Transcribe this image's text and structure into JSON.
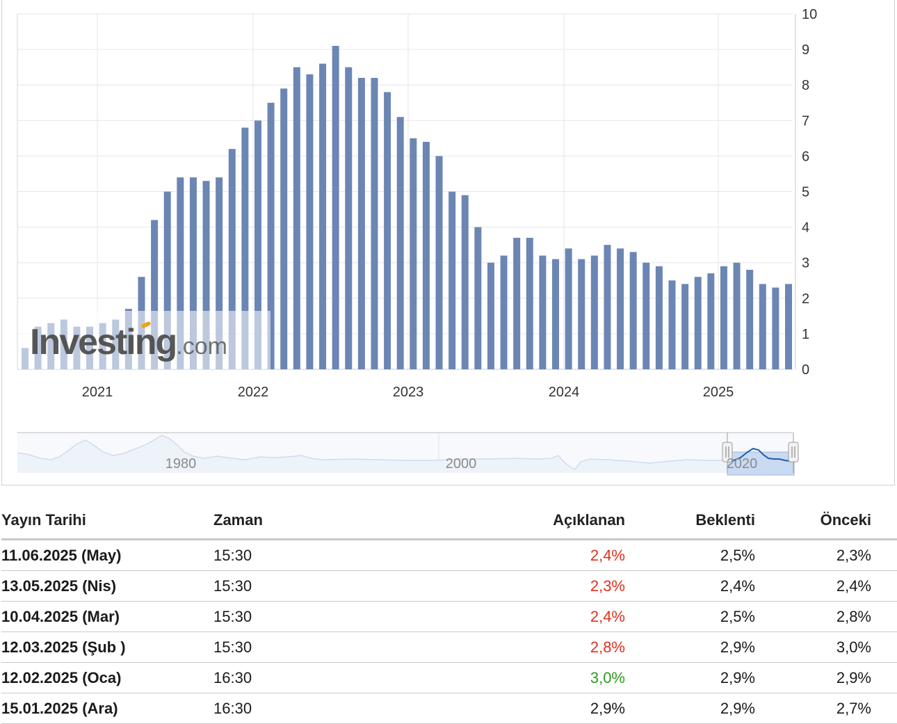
{
  "colors": {
    "bar": "#6b86b3",
    "grid": "#e6e6e6",
    "negative": "#e0301e",
    "positive": "#2e9b1f",
    "navigator_line": "#1f5fa8",
    "navigator_fill": "#c9daf2"
  },
  "watermark": {
    "brand": "Investing",
    "suffix": ".com"
  },
  "chart_data": {
    "type": "bar",
    "y_axis": {
      "min": 0,
      "max": 10,
      "ticks": [
        0,
        1,
        2,
        3,
        4,
        5,
        6,
        7,
        8,
        9,
        10
      ],
      "position": "right"
    },
    "x_axis": {
      "ticks": [
        "2021",
        "2022",
        "2023",
        "2024",
        "2025"
      ]
    },
    "grid": true,
    "values": [
      0.6,
      1.2,
      1.3,
      1.4,
      1.2,
      1.2,
      1.3,
      1.4,
      1.7,
      2.6,
      4.2,
      5.0,
      5.4,
      5.4,
      5.3,
      5.4,
      6.2,
      6.8,
      7.0,
      7.5,
      7.9,
      8.5,
      8.3,
      8.6,
      9.1,
      8.5,
      8.2,
      8.2,
      7.8,
      7.1,
      6.5,
      6.4,
      6.0,
      5.0,
      4.9,
      4.0,
      3.0,
      3.2,
      3.7,
      3.7,
      3.2,
      3.1,
      3.4,
      3.1,
      3.2,
      3.5,
      3.4,
      3.3,
      3.0,
      2.9,
      2.5,
      2.4,
      2.6,
      2.7,
      2.9,
      3.0,
      2.8,
      2.4,
      2.3,
      2.4
    ],
    "navigator": {
      "labels": [
        "1980",
        "2000",
        "2020"
      ]
    }
  },
  "table": {
    "headers": {
      "date": "Yayın Tarihi",
      "time": "Zaman",
      "actual": "Açıklanan",
      "forecast": "Beklenti",
      "previous": "Önceki"
    },
    "rows": [
      {
        "date": "11.06.2025 (May)",
        "time": "15:30",
        "actual": "2,4%",
        "forecast": "2,5%",
        "previous": "2,3%",
        "status": "neg"
      },
      {
        "date": "13.05.2025 (Nis)",
        "time": "15:30",
        "actual": "2,3%",
        "forecast": "2,4%",
        "previous": "2,4%",
        "status": "neg"
      },
      {
        "date": "10.04.2025 (Mar)",
        "time": "15:30",
        "actual": "2,4%",
        "forecast": "2,5%",
        "previous": "2,8%",
        "status": "neg"
      },
      {
        "date": "12.03.2025 (Şub )",
        "time": "15:30",
        "actual": "2,8%",
        "forecast": "2,9%",
        "previous": "3,0%",
        "status": "neg"
      },
      {
        "date": "12.02.2025 (Oca)",
        "time": "16:30",
        "actual": "3,0%",
        "forecast": "2,9%",
        "previous": "2,9%",
        "status": "pos"
      },
      {
        "date": "15.01.2025 (Ara)",
        "time": "16:30",
        "actual": "2,9%",
        "forecast": "2,9%",
        "previous": "2,7%",
        "status": "neu"
      }
    ]
  }
}
